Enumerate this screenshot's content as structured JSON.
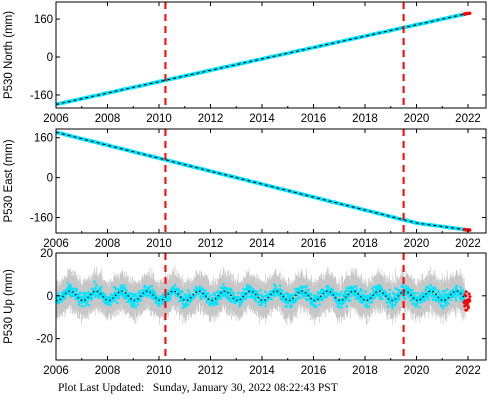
{
  "chart_data": [
    {
      "type": "scatter",
      "ylabel": "P530 North (mm)",
      "xlim": [
        2006,
        2022.7
      ],
      "ylim": [
        -215,
        232
      ],
      "xticks": [
        2006,
        2008,
        2010,
        2012,
        2014,
        2016,
        2018,
        2020,
        2022
      ],
      "yticks": [
        -160,
        0,
        160
      ],
      "series": [
        {
          "x": [
            2006,
            2008,
            2010,
            2012,
            2014,
            2016,
            2018,
            2020,
            2022
          ],
          "y": [
            -200,
            -152,
            -104,
            -56,
            -8,
            40,
            88,
            136,
            184
          ]
        }
      ],
      "event_lines_x": [
        2010.25,
        2019.5
      ],
      "grid": false
    },
    {
      "type": "scatter",
      "ylabel": "P530 East (mm)",
      "xlim": [
        2006,
        2022.7
      ],
      "ylim": [
        -222,
        195
      ],
      "xticks": [
        2006,
        2008,
        2010,
        2012,
        2014,
        2016,
        2018,
        2020,
        2022
      ],
      "yticks": [
        -160,
        0,
        160
      ],
      "series": [
        {
          "x": [
            2006,
            2008,
            2010,
            2012,
            2014,
            2016,
            2018,
            2020,
            2022
          ],
          "y": [
            182,
            130,
            78,
            26,
            -26,
            -78,
            -130,
            -182,
            -210
          ]
        }
      ],
      "event_lines_x": [
        2010.25,
        2019.5
      ],
      "grid": false
    },
    {
      "type": "scatter",
      "ylabel": "P530 Up (mm)",
      "xlim": [
        2006,
        2022.7
      ],
      "ylim": [
        -30,
        20
      ],
      "xticks": [
        2006,
        2008,
        2010,
        2012,
        2014,
        2016,
        2018,
        2020,
        2022
      ],
      "yticks": [
        -20,
        0,
        20
      ],
      "series": [
        {
          "x": [
            2006,
            2008,
            2010,
            2012,
            2014,
            2016,
            2018,
            2020,
            2022
          ],
          "y": [
            0,
            0,
            0,
            0,
            0,
            0,
            0,
            0,
            0
          ]
        }
      ],
      "event_lines_x": [
        2010.25,
        2019.5
      ],
      "grid": false
    }
  ],
  "colors": {
    "data": "#00e5ff",
    "model": "#000000",
    "errorbar": "#b4b4b4",
    "event_line": "#ff0000",
    "recent": "#ff0000"
  },
  "footer": {
    "label": "Plot Last Updated:",
    "value": "Sunday, January 30, 2022 08:22:43 PST"
  }
}
